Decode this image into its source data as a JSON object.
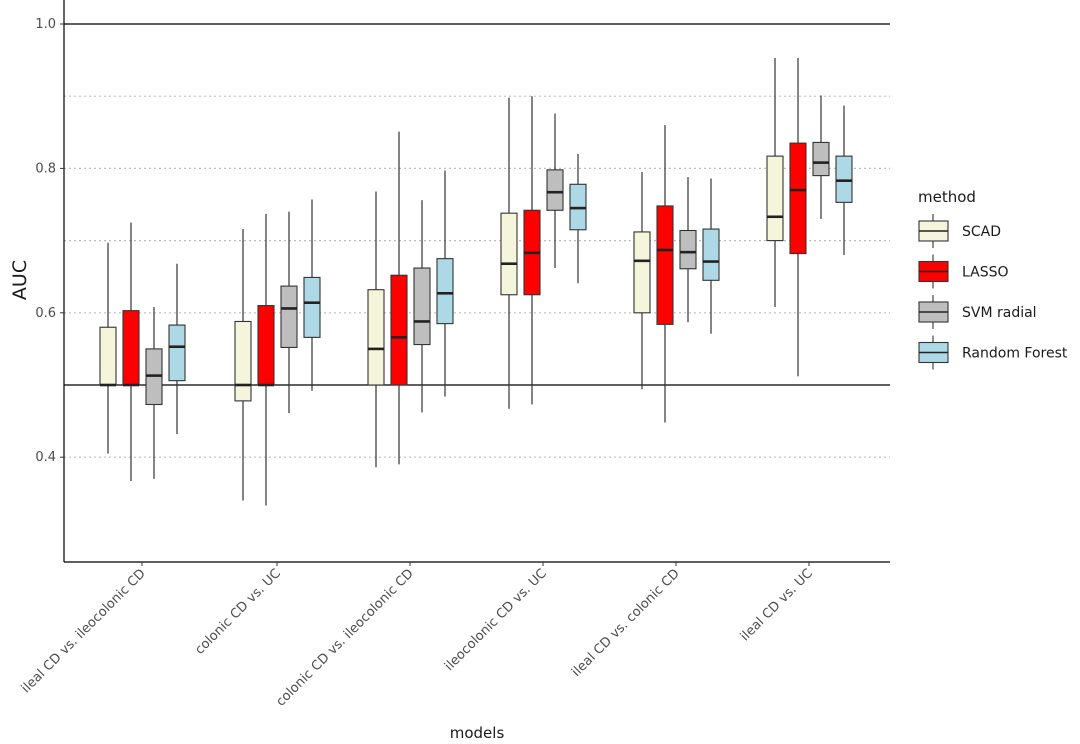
{
  "chart_data": {
    "type": "box",
    "xlabel": "models",
    "ylabel": "AUC",
    "ylim": [
      0.25,
      1.03
    ],
    "yticks": [
      0.4,
      0.6,
      0.8,
      1.0
    ],
    "ytick_labels": [
      "0.4",
      "0.6",
      "0.8",
      "1.0"
    ],
    "grid": "dotted major y-gridlines only",
    "reference_lines": [
      0.5,
      1.0
    ],
    "legend": {
      "title": "method",
      "position": "right",
      "entries": [
        {
          "name": "SCAD",
          "color": "#f5f5dc"
        },
        {
          "name": "LASSO",
          "color": "#ff0000"
        },
        {
          "name": "SVM radial",
          "color": "#bebebe"
        },
        {
          "name": "Random Forest",
          "color": "#add8e6"
        }
      ]
    },
    "categories": [
      "ileal CD vs. ileocolonic CD",
      "colonic CD vs. UC",
      "colonic CD vs. ileocolonic CD",
      "ileocolonic CD vs. UC",
      "ileal CD vs. colonic CD",
      "ileal CD vs. UC"
    ],
    "series": [
      {
        "name": "SCAD",
        "color": "#f5f5dc",
        "boxes": [
          {
            "min": 0.405,
            "q1": 0.5,
            "median": 0.5,
            "q3": 0.58,
            "max": 0.697
          },
          {
            "min": 0.34,
            "q1": 0.478,
            "median": 0.5,
            "q3": 0.588,
            "max": 0.716
          },
          {
            "min": 0.386,
            "q1": 0.5,
            "median": 0.55,
            "q3": 0.632,
            "max": 0.768
          },
          {
            "min": 0.467,
            "q1": 0.625,
            "median": 0.668,
            "q3": 0.738,
            "max": 0.898
          },
          {
            "min": 0.494,
            "q1": 0.6,
            "median": 0.672,
            "q3": 0.712,
            "max": 0.795
          },
          {
            "min": 0.608,
            "q1": 0.7,
            "median": 0.733,
            "q3": 0.817,
            "max": 0.953
          }
        ]
      },
      {
        "name": "LASSO",
        "color": "#ff0000",
        "boxes": [
          {
            "min": 0.367,
            "q1": 0.5,
            "median": 0.5,
            "q3": 0.603,
            "max": 0.725
          },
          {
            "min": 0.333,
            "q1": 0.5,
            "median": 0.5,
            "q3": 0.61,
            "max": 0.737
          },
          {
            "min": 0.39,
            "q1": 0.5,
            "median": 0.566,
            "q3": 0.652,
            "max": 0.851
          },
          {
            "min": 0.473,
            "q1": 0.625,
            "median": 0.683,
            "q3": 0.742,
            "max": 0.9
          },
          {
            "min": 0.448,
            "q1": 0.584,
            "median": 0.687,
            "q3": 0.748,
            "max": 0.86
          },
          {
            "min": 0.512,
            "q1": 0.682,
            "median": 0.77,
            "q3": 0.835,
            "max": 0.953
          }
        ]
      },
      {
        "name": "SVM radial",
        "color": "#bebebe",
        "boxes": [
          {
            "min": 0.37,
            "q1": 0.473,
            "median": 0.513,
            "q3": 0.55,
            "max": 0.608
          },
          {
            "min": 0.461,
            "q1": 0.552,
            "median": 0.606,
            "q3": 0.637,
            "max": 0.74
          },
          {
            "min": 0.462,
            "q1": 0.556,
            "median": 0.588,
            "q3": 0.662,
            "max": 0.756
          },
          {
            "min": 0.662,
            "q1": 0.742,
            "median": 0.767,
            "q3": 0.798,
            "max": 0.876
          },
          {
            "min": 0.587,
            "q1": 0.661,
            "median": 0.684,
            "q3": 0.714,
            "max": 0.788
          },
          {
            "min": 0.73,
            "q1": 0.79,
            "median": 0.808,
            "q3": 0.836,
            "max": 0.901
          }
        ]
      },
      {
        "name": "Random Forest",
        "color": "#add8e6",
        "boxes": [
          {
            "min": 0.432,
            "q1": 0.506,
            "median": 0.553,
            "q3": 0.583,
            "max": 0.668
          },
          {
            "min": 0.492,
            "q1": 0.566,
            "median": 0.614,
            "q3": 0.649,
            "max": 0.757
          },
          {
            "min": 0.484,
            "q1": 0.585,
            "median": 0.627,
            "q3": 0.675,
            "max": 0.797
          },
          {
            "min": 0.641,
            "q1": 0.715,
            "median": 0.745,
            "q3": 0.778,
            "max": 0.82
          },
          {
            "min": 0.571,
            "q1": 0.645,
            "median": 0.671,
            "q3": 0.716,
            "max": 0.786
          },
          {
            "min": 0.68,
            "q1": 0.753,
            "median": 0.783,
            "q3": 0.817,
            "max": 0.887
          }
        ]
      }
    ]
  }
}
